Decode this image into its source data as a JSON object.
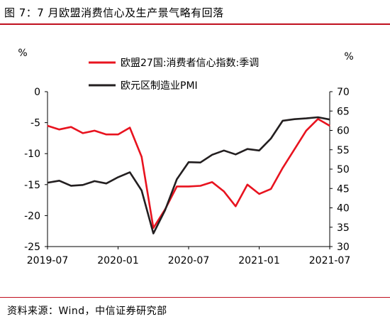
{
  "title": "图 7：7 月欧盟消费信心及生产景气略有回落",
  "source": "资料来源：Wind，中信证券研究部",
  "colors": {
    "accent": "#c0101f",
    "consumer": "#e8131f",
    "pmi": "#231f20"
  },
  "chart_data": {
    "type": "line",
    "y_left_label": "%",
    "y_right_label": "%",
    "y_left_lim": [
      -25,
      0
    ],
    "y_left_ticks": [
      "0",
      "-5",
      "-10",
      "-15",
      "-20",
      "-25"
    ],
    "y_right_lim": [
      30,
      70
    ],
    "y_right_ticks": [
      "70",
      "65",
      "60",
      "55",
      "50",
      "45",
      "40",
      "35",
      "30"
    ],
    "x_ticks": [
      "2019-07",
      "2020-01",
      "2020-07",
      "2021-01",
      "2021-07"
    ],
    "x": [
      "2019-07",
      "2019-08",
      "2019-09",
      "2019-10",
      "2019-11",
      "2019-12",
      "2020-01",
      "2020-02",
      "2020-03",
      "2020-04",
      "2020-05",
      "2020-06",
      "2020-07",
      "2020-08",
      "2020-09",
      "2020-10",
      "2020-11",
      "2020-12",
      "2021-01",
      "2021-02",
      "2021-03",
      "2021-04",
      "2021-05",
      "2021-06",
      "2021-07"
    ],
    "legend_position": "top",
    "series": [
      {
        "name": "欧盟27国:消费者信心指数:季调",
        "axis": "left",
        "color": "#e8131f",
        "values": [
          -5.5,
          -6.1,
          -5.7,
          -6.7,
          -6.3,
          -6.9,
          -6.9,
          -5.8,
          -10.5,
          -22.0,
          -19.0,
          -15.3,
          -15.3,
          -15.2,
          -14.6,
          -16.1,
          -18.5,
          -15.0,
          -16.5,
          -15.7,
          -12.3,
          -9.3,
          -6.3,
          -4.4,
          -5.5
        ]
      },
      {
        "name": "欧元区制造业PMI",
        "axis": "right",
        "color": "#231f20",
        "values": [
          46.5,
          47.0,
          45.7,
          45.9,
          46.9,
          46.3,
          47.9,
          49.2,
          44.5,
          33.4,
          39.4,
          47.4,
          51.8,
          51.7,
          53.7,
          54.8,
          53.8,
          55.2,
          54.8,
          57.9,
          62.5,
          62.9,
          63.1,
          63.4,
          62.8
        ]
      }
    ]
  }
}
